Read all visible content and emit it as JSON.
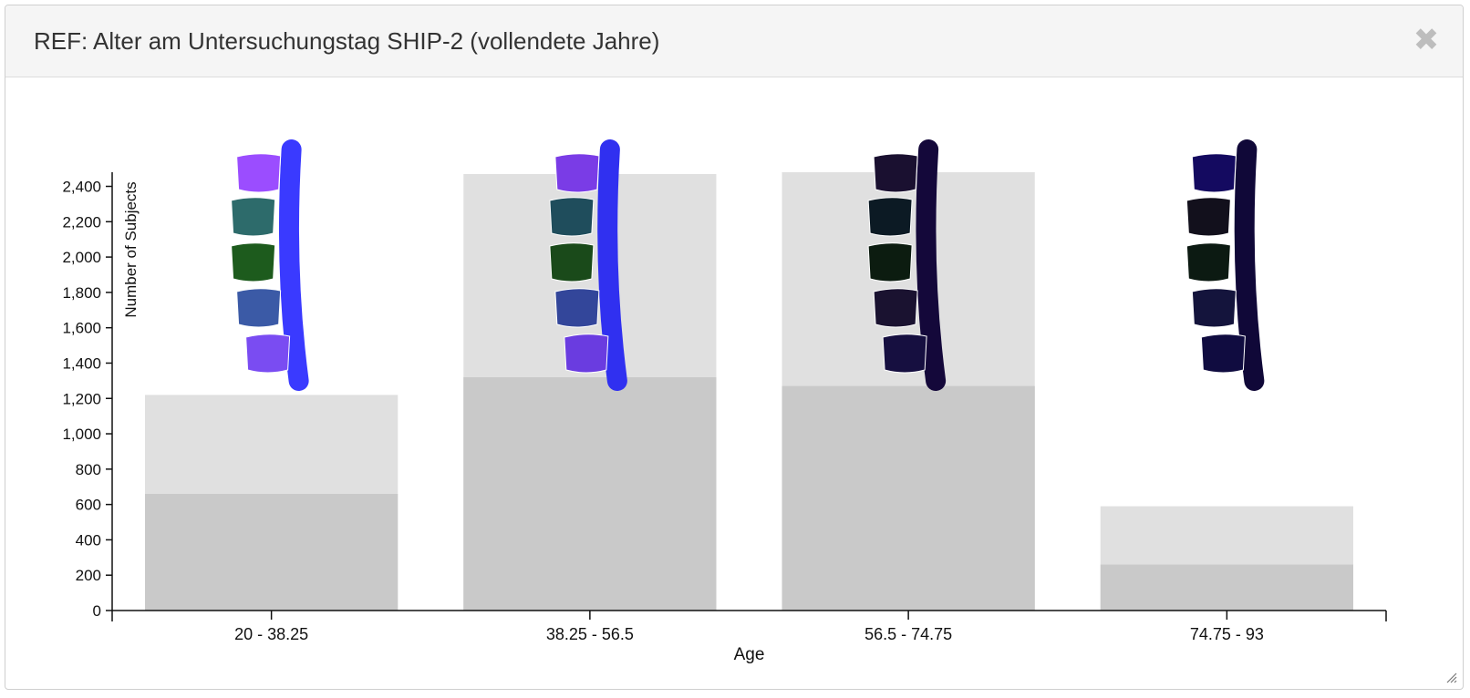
{
  "dialog": {
    "title": "REF: Alter am Untersuchungstag SHIP-2 (vollendete Jahre)",
    "close_icon": "close-icon",
    "resize_icon": "resize-handle-icon"
  },
  "chart_data": {
    "type": "bar",
    "categories": [
      "20 - 38.25",
      "38.25 - 56.5",
      "56.5 - 74.75",
      "74.75 - 93"
    ],
    "series": [
      {
        "values": [
          660,
          1320,
          1270,
          260
        ],
        "color": "#c9c9c9"
      },
      {
        "values": [
          1220,
          2470,
          2480,
          590
        ],
        "color": "#e0e0e0"
      }
    ],
    "xlabel": "Age",
    "ylabel": "Number of Subjects",
    "ylim": [
      0,
      2480
    ],
    "yticks": [
      0,
      200,
      400,
      600,
      800,
      1000,
      1200,
      1400,
      1600,
      1800,
      2000,
      2200,
      2400
    ],
    "ytick_labels": [
      "0",
      "200",
      "400",
      "600",
      "800",
      "1,000",
      "1,200",
      "1,400",
      "1,600",
      "1,800",
      "2,000",
      "2,200",
      "2,400"
    ],
    "grid": false,
    "glyphs": [
      {
        "category": "20 - 38.25",
        "icon": "spine-icon",
        "colors": [
          "#9b4dff",
          "#2d6b6b",
          "#1d5b1d",
          "#3b5aa6",
          "#7a4cf2"
        ],
        "disc_color": "#3a3aff"
      },
      {
        "category": "38.25 - 56.5",
        "icon": "spine-icon",
        "colors": [
          "#7a3ce6",
          "#1f4d5c",
          "#1a4a1a",
          "#33469a",
          "#6a3ce0"
        ],
        "disc_color": "#3030f0"
      },
      {
        "category": "56.5 - 74.75",
        "icon": "spine-icon",
        "colors": [
          "#1a1030",
          "#0c1a24",
          "#0c1c10",
          "#1a1230",
          "#160f40"
        ],
        "disc_color": "#14083a"
      },
      {
        "category": "74.75 - 93",
        "icon": "spine-icon",
        "colors": [
          "#140a60",
          "#12101c",
          "#0c1a12",
          "#14143c",
          "#100c40"
        ],
        "disc_color": "#100838"
      }
    ]
  }
}
